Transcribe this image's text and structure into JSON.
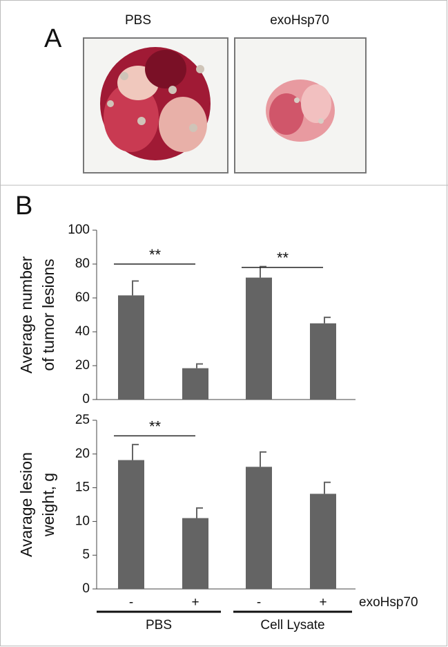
{
  "panel_a": {
    "label": "A",
    "images": [
      "PBS",
      "exoHsp70"
    ]
  },
  "panel_b": {
    "label": "B"
  },
  "chart_data": [
    {
      "type": "bar",
      "ylabel": [
        "Average number",
        "of tumor lesions"
      ],
      "categories": [
        null,
        null,
        null,
        null
      ],
      "values": [
        61.5,
        18.5,
        72,
        45
      ],
      "errors": [
        8.5,
        2.5,
        6.5,
        3.5
      ],
      "color": "#646464",
      "ylim": [
        0,
        100
      ],
      "yticks": [
        0,
        20,
        40,
        60,
        80,
        100
      ],
      "annotations": [
        "**",
        "**"
      ]
    },
    {
      "type": "bar",
      "ylabel": [
        "Avarage lesion",
        "weight, g"
      ],
      "categories": [
        "-",
        "+",
        "-",
        "+"
      ],
      "xlabel": "exoHsp70",
      "groups": [
        "PBS",
        "Cell Lysate"
      ],
      "values": [
        19.1,
        10.5,
        18.1,
        14.1
      ],
      "errors": [
        2.3,
        1.5,
        2.2,
        1.7
      ],
      "color": "#646464",
      "ylim": [
        0,
        25
      ],
      "yticks": [
        0,
        5,
        10,
        15,
        20,
        25
      ],
      "annotations": [
        "**"
      ]
    }
  ]
}
